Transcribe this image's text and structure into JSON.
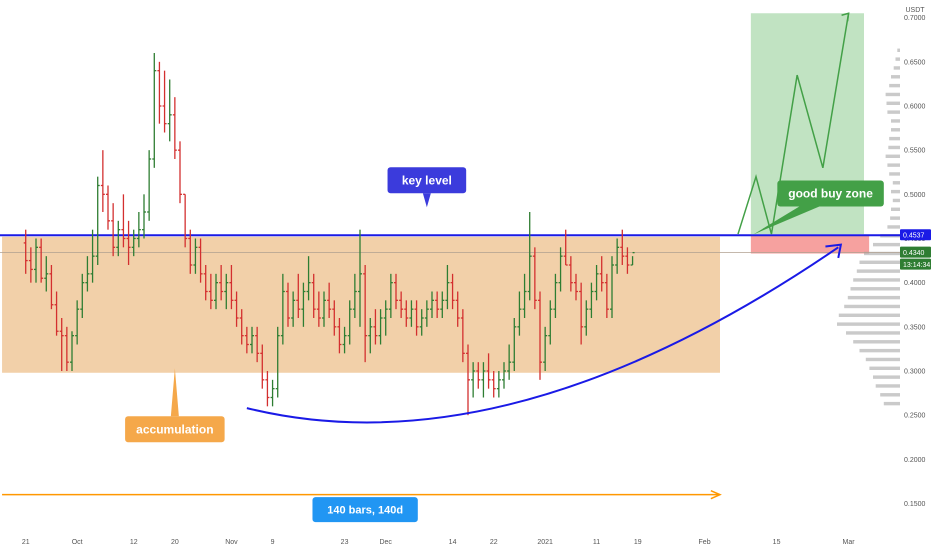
{
  "chart_data": {
    "type": "bar",
    "subtype": "ohlc",
    "currency": "USDT",
    "ylim": [
      0.12,
      0.72
    ],
    "y_ticks": [
      "0.7000",
      "0.6500",
      "0.6000",
      "0.5500",
      "0.5000",
      "0.4500",
      "0.4000",
      "0.3500",
      "0.3000",
      "0.2500",
      "0.2000",
      "0.1500"
    ],
    "y_tick_values": [
      0.7,
      0.65,
      0.6,
      0.55,
      0.5,
      0.45,
      0.4,
      0.35,
      0.3,
      0.25,
      0.2,
      0.15
    ],
    "x_ticks": [
      "21",
      "Oct",
      "12",
      "20",
      "Nov",
      "9",
      "23",
      "Dec",
      "14",
      "22",
      "2021",
      "11",
      "19",
      "Feb",
      "15",
      "Mar"
    ],
    "x_tick_days": [
      0,
      10,
      21,
      29,
      40,
      48,
      62,
      70,
      83,
      91,
      101,
      111,
      119,
      132,
      146,
      160
    ],
    "day_range": [
      -5,
      170
    ],
    "ohlc": [
      [
        0.445,
        0.46,
        0.41,
        0.425
      ],
      [
        0.425,
        0.44,
        0.4,
        0.415
      ],
      [
        0.415,
        0.45,
        0.4,
        0.44
      ],
      [
        0.44,
        0.45,
        0.4,
        0.405
      ],
      [
        0.405,
        0.43,
        0.39,
        0.41
      ],
      [
        0.41,
        0.42,
        0.37,
        0.375
      ],
      [
        0.375,
        0.39,
        0.34,
        0.345
      ],
      [
        0.345,
        0.36,
        0.3,
        0.34
      ],
      [
        0.34,
        0.35,
        0.3,
        0.31
      ],
      [
        0.31,
        0.345,
        0.3,
        0.34
      ],
      [
        0.34,
        0.38,
        0.33,
        0.37
      ],
      [
        0.37,
        0.41,
        0.36,
        0.4
      ],
      [
        0.4,
        0.43,
        0.39,
        0.41
      ],
      [
        0.41,
        0.46,
        0.4,
        0.43
      ],
      [
        0.43,
        0.52,
        0.42,
        0.51
      ],
      [
        0.51,
        0.55,
        0.48,
        0.5
      ],
      [
        0.5,
        0.51,
        0.46,
        0.47
      ],
      [
        0.47,
        0.49,
        0.43,
        0.44
      ],
      [
        0.44,
        0.47,
        0.43,
        0.46
      ],
      [
        0.46,
        0.5,
        0.44,
        0.45
      ],
      [
        0.45,
        0.47,
        0.42,
        0.44
      ],
      [
        0.44,
        0.46,
        0.43,
        0.45
      ],
      [
        0.45,
        0.48,
        0.44,
        0.46
      ],
      [
        0.46,
        0.5,
        0.45,
        0.48
      ],
      [
        0.48,
        0.55,
        0.47,
        0.54
      ],
      [
        0.54,
        0.66,
        0.53,
        0.64
      ],
      [
        0.64,
        0.65,
        0.58,
        0.6
      ],
      [
        0.6,
        0.64,
        0.57,
        0.58
      ],
      [
        0.58,
        0.63,
        0.56,
        0.59
      ],
      [
        0.59,
        0.61,
        0.54,
        0.55
      ],
      [
        0.55,
        0.56,
        0.49,
        0.5
      ],
      [
        0.5,
        0.5,
        0.44,
        0.45
      ],
      [
        0.45,
        0.46,
        0.41,
        0.42
      ],
      [
        0.42,
        0.45,
        0.41,
        0.44
      ],
      [
        0.44,
        0.45,
        0.4,
        0.41
      ],
      [
        0.41,
        0.42,
        0.38,
        0.39
      ],
      [
        0.39,
        0.41,
        0.37,
        0.38
      ],
      [
        0.38,
        0.41,
        0.37,
        0.4
      ],
      [
        0.4,
        0.42,
        0.38,
        0.39
      ],
      [
        0.39,
        0.41,
        0.37,
        0.4
      ],
      [
        0.4,
        0.42,
        0.37,
        0.38
      ],
      [
        0.38,
        0.39,
        0.35,
        0.36
      ],
      [
        0.36,
        0.37,
        0.33,
        0.34
      ],
      [
        0.34,
        0.35,
        0.32,
        0.33
      ],
      [
        0.33,
        0.35,
        0.32,
        0.34
      ],
      [
        0.34,
        0.35,
        0.31,
        0.32
      ],
      [
        0.32,
        0.33,
        0.28,
        0.29
      ],
      [
        0.29,
        0.3,
        0.26,
        0.27
      ],
      [
        0.27,
        0.29,
        0.26,
        0.28
      ],
      [
        0.28,
        0.35,
        0.27,
        0.34
      ],
      [
        0.34,
        0.41,
        0.33,
        0.39
      ],
      [
        0.39,
        0.4,
        0.35,
        0.36
      ],
      [
        0.36,
        0.39,
        0.35,
        0.38
      ],
      [
        0.38,
        0.41,
        0.36,
        0.37
      ],
      [
        0.37,
        0.4,
        0.35,
        0.39
      ],
      [
        0.39,
        0.43,
        0.38,
        0.4
      ],
      [
        0.4,
        0.41,
        0.36,
        0.37
      ],
      [
        0.37,
        0.39,
        0.35,
        0.36
      ],
      [
        0.36,
        0.39,
        0.35,
        0.38
      ],
      [
        0.38,
        0.4,
        0.36,
        0.37
      ],
      [
        0.37,
        0.38,
        0.34,
        0.35
      ],
      [
        0.35,
        0.36,
        0.32,
        0.33
      ],
      [
        0.33,
        0.35,
        0.32,
        0.34
      ],
      [
        0.34,
        0.38,
        0.33,
        0.37
      ],
      [
        0.37,
        0.41,
        0.36,
        0.39
      ],
      [
        0.39,
        0.46,
        0.35,
        0.41
      ],
      [
        0.41,
        0.42,
        0.31,
        0.34
      ],
      [
        0.34,
        0.36,
        0.32,
        0.35
      ],
      [
        0.35,
        0.37,
        0.33,
        0.34
      ],
      [
        0.34,
        0.37,
        0.33,
        0.36
      ],
      [
        0.36,
        0.38,
        0.34,
        0.37
      ],
      [
        0.37,
        0.41,
        0.36,
        0.4
      ],
      [
        0.4,
        0.41,
        0.37,
        0.38
      ],
      [
        0.38,
        0.39,
        0.36,
        0.37
      ],
      [
        0.37,
        0.38,
        0.35,
        0.36
      ],
      [
        0.36,
        0.38,
        0.35,
        0.37
      ],
      [
        0.37,
        0.38,
        0.34,
        0.35
      ],
      [
        0.35,
        0.37,
        0.34,
        0.36
      ],
      [
        0.36,
        0.38,
        0.35,
        0.37
      ],
      [
        0.37,
        0.39,
        0.36,
        0.38
      ],
      [
        0.38,
        0.39,
        0.36,
        0.37
      ],
      [
        0.37,
        0.39,
        0.36,
        0.38
      ],
      [
        0.38,
        0.42,
        0.37,
        0.4
      ],
      [
        0.4,
        0.41,
        0.37,
        0.38
      ],
      [
        0.38,
        0.39,
        0.35,
        0.36
      ],
      [
        0.36,
        0.37,
        0.31,
        0.32
      ],
      [
        0.32,
        0.33,
        0.25,
        0.29
      ],
      [
        0.29,
        0.31,
        0.27,
        0.3
      ],
      [
        0.3,
        0.31,
        0.28,
        0.29
      ],
      [
        0.29,
        0.31,
        0.27,
        0.3
      ],
      [
        0.3,
        0.32,
        0.28,
        0.29
      ],
      [
        0.29,
        0.3,
        0.27,
        0.28
      ],
      [
        0.28,
        0.3,
        0.27,
        0.29
      ],
      [
        0.29,
        0.31,
        0.28,
        0.3
      ],
      [
        0.3,
        0.33,
        0.29,
        0.31
      ],
      [
        0.31,
        0.36,
        0.3,
        0.35
      ],
      [
        0.35,
        0.39,
        0.34,
        0.37
      ],
      [
        0.37,
        0.41,
        0.36,
        0.39
      ],
      [
        0.39,
        0.48,
        0.38,
        0.43
      ],
      [
        0.43,
        0.44,
        0.37,
        0.38
      ],
      [
        0.38,
        0.39,
        0.29,
        0.31
      ],
      [
        0.31,
        0.35,
        0.3,
        0.34
      ],
      [
        0.34,
        0.38,
        0.33,
        0.37
      ],
      [
        0.37,
        0.41,
        0.36,
        0.4
      ],
      [
        0.4,
        0.44,
        0.39,
        0.43
      ],
      [
        0.43,
        0.46,
        0.42,
        0.42
      ],
      [
        0.42,
        0.43,
        0.39,
        0.4
      ],
      [
        0.4,
        0.41,
        0.38,
        0.39
      ],
      [
        0.39,
        0.4,
        0.33,
        0.35
      ],
      [
        0.35,
        0.38,
        0.34,
        0.37
      ],
      [
        0.37,
        0.4,
        0.36,
        0.39
      ],
      [
        0.39,
        0.42,
        0.38,
        0.41
      ],
      [
        0.41,
        0.43,
        0.39,
        0.4
      ],
      [
        0.4,
        0.41,
        0.36,
        0.37
      ],
      [
        0.37,
        0.43,
        0.36,
        0.42
      ],
      [
        0.42,
        0.45,
        0.41,
        0.44
      ],
      [
        0.44,
        0.46,
        0.42,
        0.43
      ],
      [
        0.43,
        0.44,
        0.41,
        0.42
      ],
      [
        0.42,
        0.43,
        0.42,
        0.434
      ]
    ],
    "key_level": 0.4537,
    "current_price": 0.434,
    "accumulation_zone": [
      0.298,
      0.452
    ],
    "volume_profile": [
      [
        0.26,
        18
      ],
      [
        0.27,
        22
      ],
      [
        0.28,
        27
      ],
      [
        0.29,
        30
      ],
      [
        0.3,
        34
      ],
      [
        0.31,
        38
      ],
      [
        0.32,
        45
      ],
      [
        0.33,
        52
      ],
      [
        0.34,
        60
      ],
      [
        0.35,
        70
      ],
      [
        0.36,
        68
      ],
      [
        0.37,
        62
      ],
      [
        0.38,
        58
      ],
      [
        0.39,
        55
      ],
      [
        0.4,
        52
      ],
      [
        0.41,
        48
      ],
      [
        0.42,
        45
      ],
      [
        0.43,
        40
      ],
      [
        0.44,
        30
      ],
      [
        0.45,
        22
      ],
      [
        0.46,
        14
      ],
      [
        0.47,
        11
      ],
      [
        0.48,
        10
      ],
      [
        0.49,
        8
      ],
      [
        0.5,
        10
      ],
      [
        0.51,
        8
      ],
      [
        0.52,
        12
      ],
      [
        0.53,
        14
      ],
      [
        0.54,
        16
      ],
      [
        0.55,
        13
      ],
      [
        0.56,
        12
      ],
      [
        0.57,
        10
      ],
      [
        0.58,
        10
      ],
      [
        0.59,
        14
      ],
      [
        0.6,
        15
      ],
      [
        0.61,
        16
      ],
      [
        0.62,
        12
      ],
      [
        0.63,
        10
      ],
      [
        0.64,
        7
      ],
      [
        0.65,
        5
      ],
      [
        0.66,
        3
      ]
    ],
    "colors": {
      "up": "#2e7d32",
      "down": "#d32f2f",
      "key_line": "#1a1ae6",
      "zone": "#f0c89a",
      "arrow": "#ff9800",
      "curve": "#1a1ae6",
      "green_zone": "#4caf50",
      "red_zone": "#ef5350",
      "profile": "#9e9e9e"
    }
  },
  "labels": {
    "currency": "USDT",
    "key_level": "key level",
    "accumulation": "accumulation",
    "good_buy_zone": "good buy zone",
    "bars_range": "140 bars, 140d",
    "price_key": "0.4537",
    "price_current": "0.4340",
    "countdown": "13:14:34"
  }
}
